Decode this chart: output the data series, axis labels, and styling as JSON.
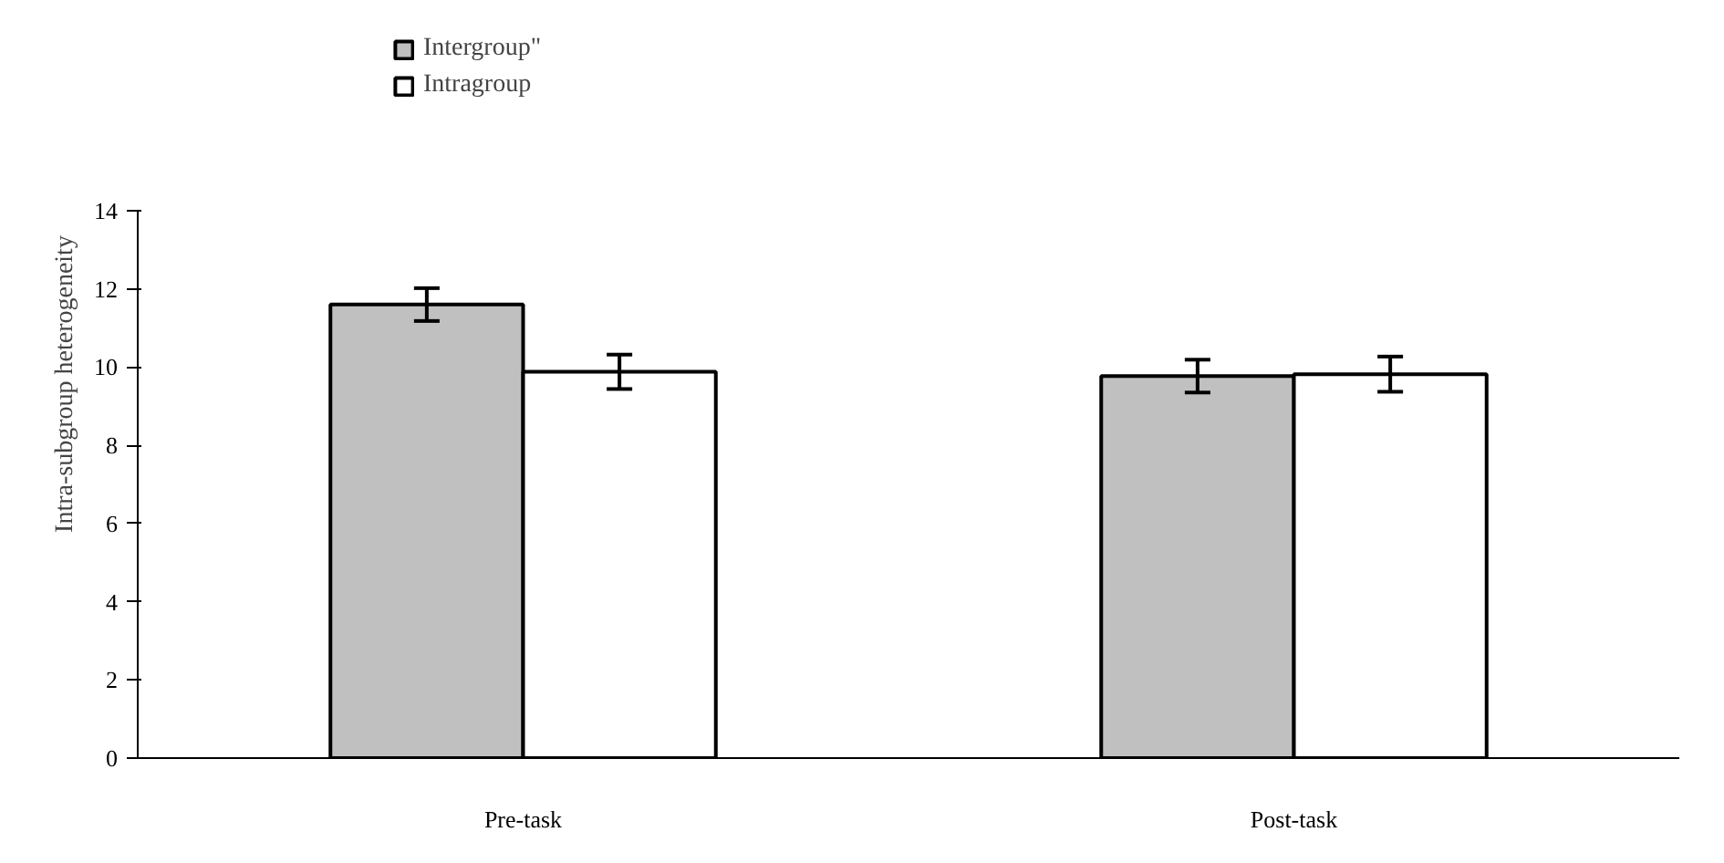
{
  "chart_data": {
    "type": "bar",
    "categories": [
      "Pre-task",
      "Post-task"
    ],
    "ylabel": "Intra-subgroup heterogeneity",
    "ylim": [
      0,
      14
    ],
    "yticks": [
      0,
      2,
      4,
      6,
      8,
      10,
      12,
      14
    ],
    "grid": false,
    "legend": "top left",
    "series": [
      {
        "name": "Intergroup\"",
        "color": "#c0c0c0",
        "values": [
          11.6,
          9.77
        ],
        "errors": [
          0.42,
          0.42
        ]
      },
      {
        "name": "Intragroup",
        "color": "#ffffff",
        "values": [
          9.88,
          9.82
        ],
        "errors": [
          0.44,
          0.45
        ]
      }
    ]
  }
}
